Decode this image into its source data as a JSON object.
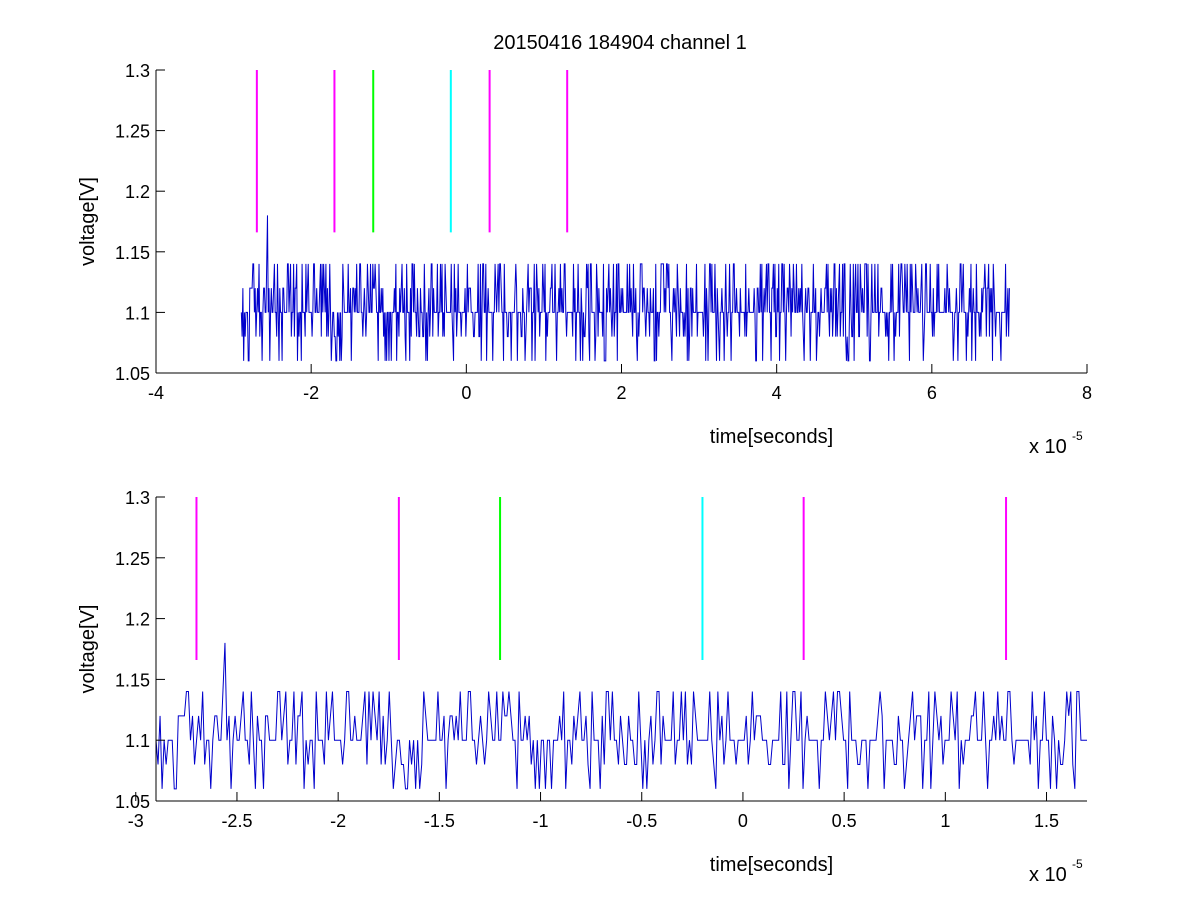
{
  "figure": {
    "title": "20150416 184904 channel 1"
  },
  "chart_data": [
    {
      "type": "line",
      "title": "20150416 184904 channel 1",
      "xlabel": "time[seconds]",
      "ylabel": "voltage[V]",
      "x_exponent_label": "x 10",
      "x_exponent_sup": "-5",
      "xlim": [
        -4,
        8
      ],
      "ylim": [
        1.05,
        1.3
      ],
      "x_scale": "1e-5",
      "xticks": [
        -4,
        -2,
        0,
        2,
        4,
        6,
        8
      ],
      "xtick_labels": [
        "-4",
        "-2",
        "0",
        "2",
        "4",
        "6",
        "8"
      ],
      "yticks": [
        1.05,
        1.1,
        1.15,
        1.2,
        1.25,
        1.3
      ],
      "ytick_labels": [
        "1.05",
        "1.1",
        "1.15",
        "1.2",
        "1.25",
        "1.3"
      ],
      "grid": false,
      "series": [
        {
          "color": "#0000cc",
          "signal": {
            "x_start": -2.9,
            "x_end": 7.0,
            "samples": 1000,
            "seed": 7,
            "levels": [
              1.06,
              1.08,
              1.1,
              1.12,
              1.14
            ],
            "baseline": 1.1,
            "spikes": [
              {
                "x": -2.56,
                "y": 1.18
              }
            ]
          }
        }
      ],
      "markers": [
        {
          "x": -2.7,
          "y0": 1.166,
          "y1": 1.3,
          "color": "#ff00ff"
        },
        {
          "x": -1.7,
          "y0": 1.166,
          "y1": 1.3,
          "color": "#ff00ff"
        },
        {
          "x": -1.2,
          "y0": 1.166,
          "y1": 1.3,
          "color": "#00ff00"
        },
        {
          "x": -0.2,
          "y0": 1.166,
          "y1": 1.3,
          "color": "#00ffff"
        },
        {
          "x": 0.3,
          "y0": 1.166,
          "y1": 1.3,
          "color": "#ff00ff"
        },
        {
          "x": 1.3,
          "y0": 1.166,
          "y1": 1.3,
          "color": "#ff00ff"
        }
      ]
    },
    {
      "type": "line",
      "title": "",
      "xlabel": "time[seconds]",
      "ylabel": "voltage[V]",
      "x_exponent_label": "x 10",
      "x_exponent_sup": "-5",
      "xlim": [
        -2.9,
        1.7
      ],
      "ylim": [
        1.05,
        1.3
      ],
      "x_scale": "1e-5",
      "xticks": [
        -3,
        -2.5,
        -2,
        -1.5,
        -1,
        -0.5,
        0,
        0.5,
        1,
        1.5
      ],
      "xtick_labels": [
        "-3",
        "-2.5",
        "-2",
        "-1.5",
        "-1",
        "-0.5",
        "0",
        "0.5",
        "1",
        "1.5"
      ],
      "yticks": [
        1.05,
        1.1,
        1.15,
        1.2,
        1.25,
        1.3
      ],
      "ytick_labels": [
        "1.05",
        "1.1",
        "1.15",
        "1.2",
        "1.25",
        "1.3"
      ],
      "grid": false,
      "series": [
        {
          "color": "#0000cc",
          "signal": {
            "x_start": -2.9,
            "x_end": 1.7,
            "samples": 460,
            "seed": 7,
            "levels": [
              1.06,
              1.08,
              1.1,
              1.12,
              1.14
            ],
            "baseline": 1.1,
            "spikes": [
              {
                "x": -2.56,
                "y": 1.18
              }
            ]
          }
        }
      ],
      "markers": [
        {
          "x": -2.7,
          "y0": 1.166,
          "y1": 1.3,
          "color": "#ff00ff"
        },
        {
          "x": -1.7,
          "y0": 1.166,
          "y1": 1.3,
          "color": "#ff00ff"
        },
        {
          "x": -1.2,
          "y0": 1.166,
          "y1": 1.3,
          "color": "#00ff00"
        },
        {
          "x": -0.2,
          "y0": 1.166,
          "y1": 1.3,
          "color": "#00ffff"
        },
        {
          "x": 0.3,
          "y0": 1.166,
          "y1": 1.3,
          "color": "#ff00ff"
        },
        {
          "x": 1.3,
          "y0": 1.166,
          "y1": 1.3,
          "color": "#ff00ff"
        }
      ]
    }
  ]
}
